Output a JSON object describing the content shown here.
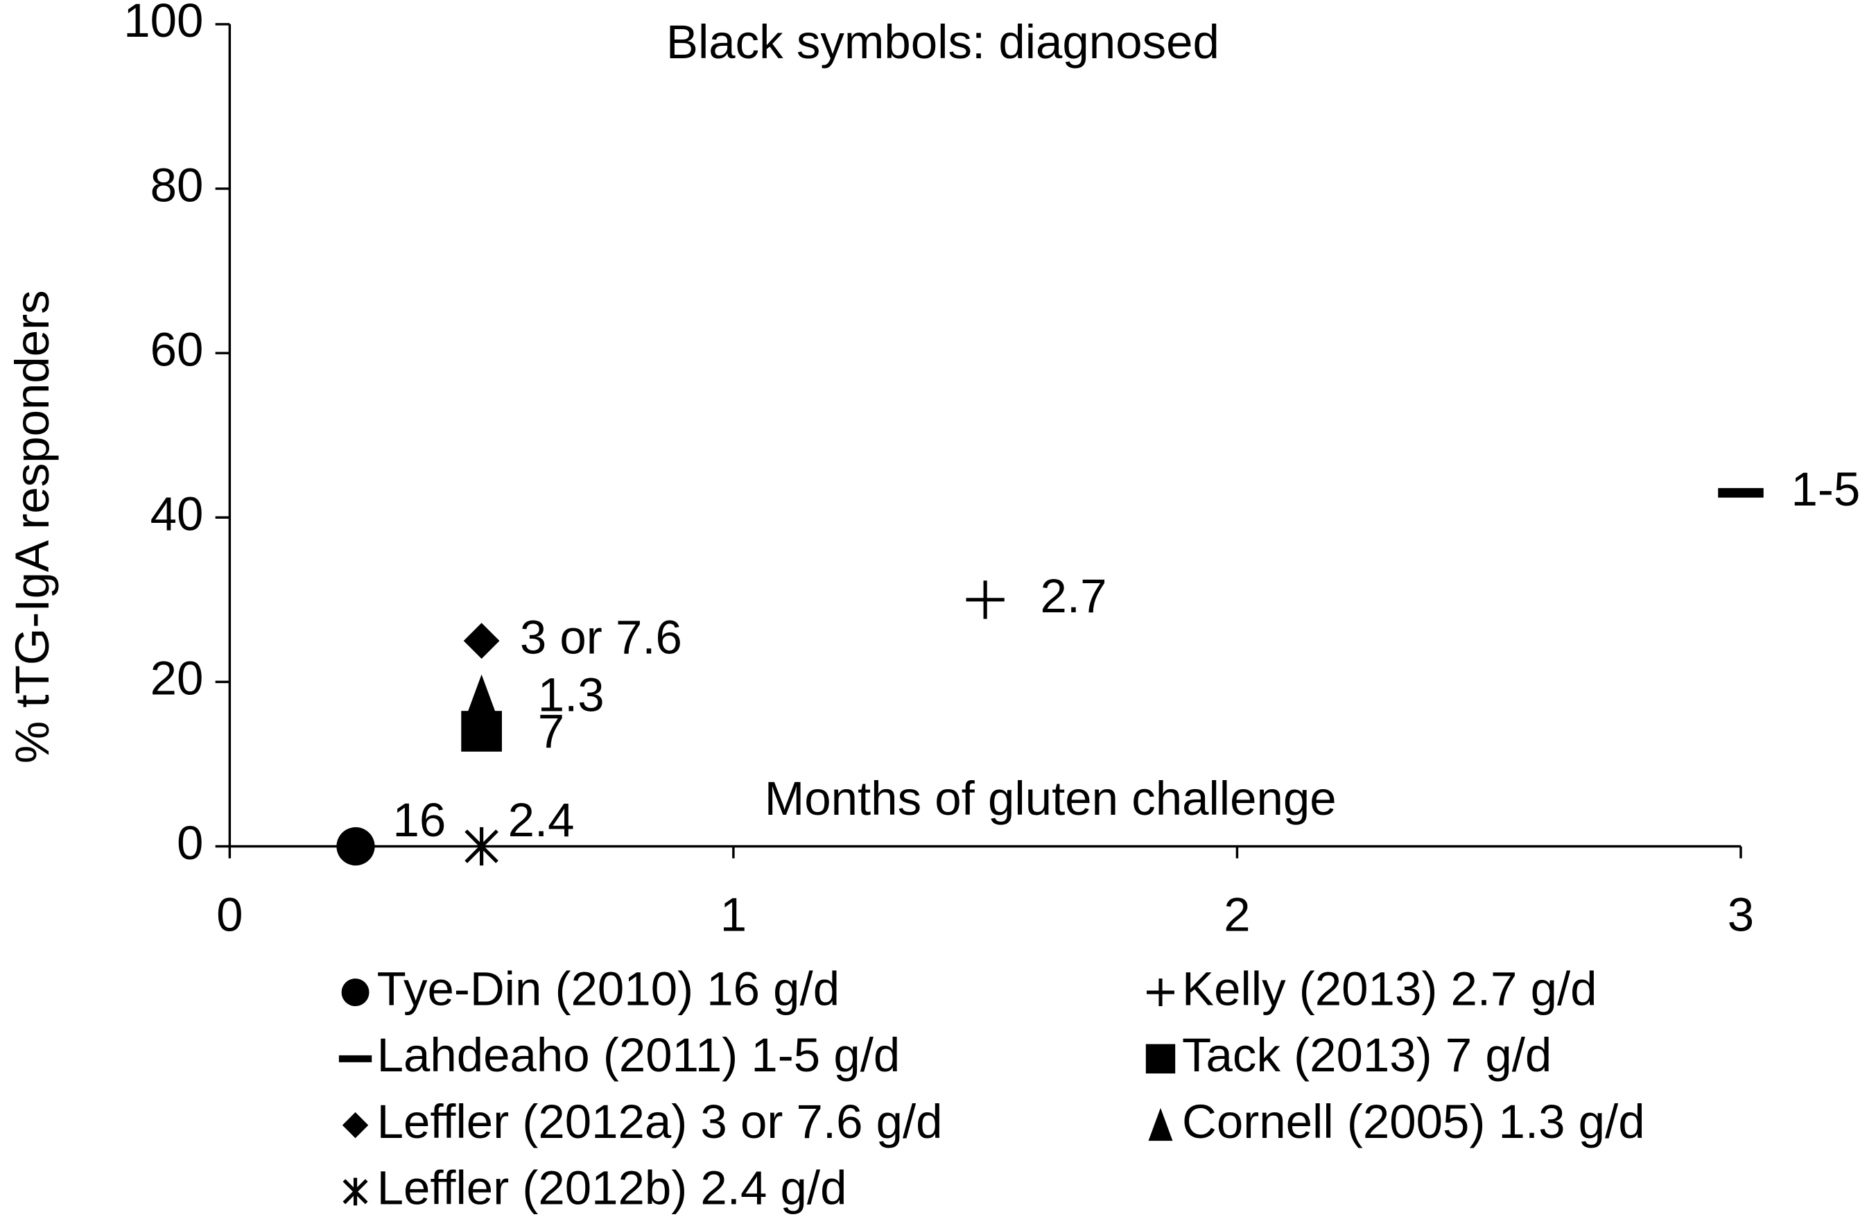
{
  "chart_data": {
    "type": "scatter",
    "title": "Black symbols: diagnosed",
    "x_label": "Months of gluten challenge",
    "y_label": "% tTG-IgA responders",
    "xlim": [
      0,
      3
    ],
    "xticks": [
      0,
      1,
      2,
      3
    ],
    "ylim": [
      0,
      100
    ],
    "yticks": [
      0,
      20,
      40,
      60,
      80,
      100
    ],
    "series": [
      {
        "name": "Tye-Din (2010) 16 g/d",
        "marker": "circle",
        "color": "#000000",
        "x": [
          0.25
        ],
        "values": [
          0
        ],
        "point_label": "16"
      },
      {
        "name": "Lahdeaho (2011) 1-5 g/d",
        "marker": "dash",
        "color": "#000000",
        "x": [
          3
        ],
        "values": [
          43
        ],
        "point_label": "1-5"
      },
      {
        "name": "Leffler (2012a) 3 or 7.6 g/d",
        "marker": "diamond",
        "color": "#000000",
        "x": [
          0.5
        ],
        "values": [
          25
        ],
        "point_label": "3 or 7.6"
      },
      {
        "name": "Leffler (2012b) 2.4 g/d",
        "marker": "asterisk",
        "color": "#000000",
        "x": [
          0.5
        ],
        "values": [
          0
        ],
        "point_label": "2.4"
      },
      {
        "name": "Kelly (2013) 2.7 g/d",
        "marker": "plus",
        "color": "#000000",
        "x": [
          1.5
        ],
        "values": [
          30
        ],
        "point_label": "2.7"
      },
      {
        "name": "Tack (2013) 7 g/d",
        "marker": "square",
        "color": "#000000",
        "x": [
          0.5
        ],
        "values": [
          14
        ],
        "point_label": "7"
      },
      {
        "name": "Cornell (2005) 1.3 g/d",
        "marker": "triangle",
        "color": "#000000",
        "x": [
          0.5
        ],
        "values": [
          18
        ],
        "point_label": "1.3"
      }
    ]
  }
}
